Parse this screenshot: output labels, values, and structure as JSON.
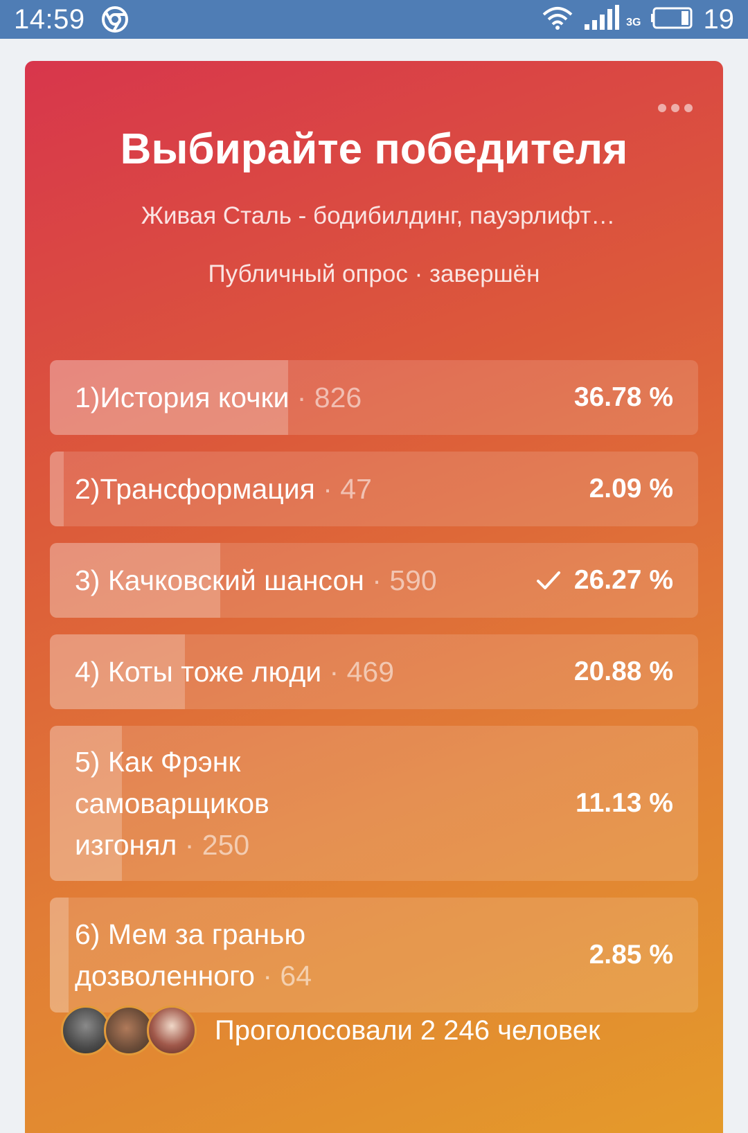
{
  "status_bar": {
    "time": "14:59",
    "network_type": "3G",
    "battery": "19",
    "icons": [
      "chrome-icon",
      "wifi-icon",
      "signal-icon",
      "battery-icon"
    ]
  },
  "poll": {
    "title": "Выбирайте победителя",
    "author": "Живая Сталь - бодибилдинг, пауэрлифт…",
    "meta": "Публичный опрос · завершён",
    "options": [
      {
        "label": "1)История кочки",
        "count": "826",
        "percent": "36.78 %",
        "fraction": 0.3678,
        "selected": false
      },
      {
        "label": "2)Трансформация",
        "count": "47",
        "percent": "2.09 %",
        "fraction": 0.0209,
        "selected": false
      },
      {
        "label": "3) Качковский шансон",
        "count": "590",
        "percent": "26.27 %",
        "fraction": 0.2627,
        "selected": true
      },
      {
        "label": "4) Коты тоже люди",
        "count": "469",
        "percent": "20.88 %",
        "fraction": 0.2088,
        "selected": false
      },
      {
        "label": "5) Как Фрэнк самоварщиков изгонял",
        "count": "250",
        "percent": "11.13 %",
        "fraction": 0.1113,
        "selected": false
      },
      {
        "label": "6) Мем за гранью дозволенного",
        "count": "64",
        "percent": "2.85 %",
        "fraction": 0.0285,
        "selected": false
      }
    ],
    "voters_text": "Проголосовали 2 246 человек"
  },
  "colors": {
    "status_bar": "#4f7db5",
    "gradient_start": "#d8364c",
    "gradient_end": "#e49b2a"
  }
}
